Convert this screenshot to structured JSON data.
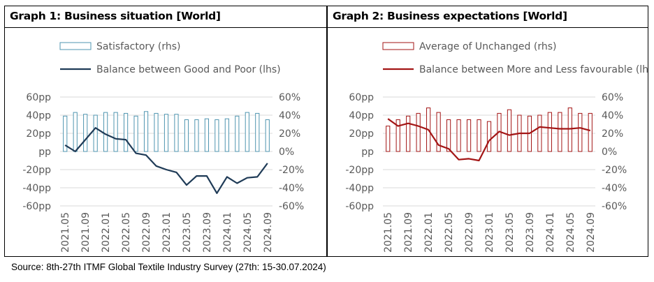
{
  "source": "Source: 8th-27th ITMF Global Textile Industry Survey (27th: 15-30.07.2024)",
  "colors": {
    "panel1": "#1f3b57",
    "panel1_bar": "#4f95b0",
    "panel2": "#a31515"
  },
  "chart_data": [
    {
      "type": "bar+line",
      "title": "Graph 1: Business situation [World]",
      "x": [
        "2021.05",
        "2021.07",
        "2021.09",
        "2021.11",
        "2022.01",
        "2022.03",
        "2022.05",
        "2022.07",
        "2022.09",
        "2022.11",
        "2023.01",
        "2023.03",
        "2023.05",
        "2023.07",
        "2023.09",
        "2023.11",
        "2024.01",
        "2024.03",
        "2024.05",
        "2024.07",
        "2024.09"
      ],
      "x_tick_labels": [
        "2021.05",
        "2021.09",
        "2022.01",
        "2022.05",
        "2022.09",
        "2023.01",
        "2023.05",
        "2023.09",
        "2024.01",
        "2024.05",
        "2024.09"
      ],
      "left_axis": {
        "ticks": [
          "60pp",
          "40pp",
          "20pp",
          "pp",
          "-20pp",
          "-40pp",
          "-60pp"
        ],
        "ylim": [
          -60,
          60
        ]
      },
      "right_axis": {
        "ticks": [
          "60%",
          "40%",
          "20%",
          "0%",
          "-20%",
          "-40%",
          "-60%"
        ],
        "ylim": [
          -60,
          60
        ]
      },
      "series": [
        {
          "name": "Satisfactory (rhs)",
          "type": "bar",
          "axis": "right",
          "values": [
            39,
            43,
            41,
            40,
            43,
            43,
            42,
            39,
            44,
            42,
            41,
            41,
            35,
            35,
            36,
            35,
            36,
            39,
            43,
            42,
            35
          ]
        },
        {
          "name": "Balance between Good and Poor (lhs)",
          "type": "line",
          "axis": "left",
          "values": [
            7,
            0,
            13,
            26,
            19,
            14,
            13,
            -2,
            -4,
            -16,
            -20,
            -23,
            -37,
            -27,
            -27,
            -46,
            -28,
            -35,
            -29,
            -28,
            -13
          ]
        }
      ]
    },
    {
      "type": "bar+line",
      "title": "Graph 2: Business expectations [World]",
      "x": [
        "2021.05",
        "2021.07",
        "2021.09",
        "2021.11",
        "2022.01",
        "2022.03",
        "2022.05",
        "2022.07",
        "2022.09",
        "2022.11",
        "2023.01",
        "2023.03",
        "2023.05",
        "2023.07",
        "2023.09",
        "2023.11",
        "2024.01",
        "2024.03",
        "2024.05",
        "2024.07",
        "2024.09"
      ],
      "x_tick_labels": [
        "2021.05",
        "2021.09",
        "2022.01",
        "2022.05",
        "2022.09",
        "2023.01",
        "2023.05",
        "2023.09",
        "2024.01",
        "2024.05",
        "2024.09"
      ],
      "left_axis": {
        "ticks": [
          "60pp",
          "40pp",
          "20pp",
          "pp",
          "-20pp",
          "-40pp",
          "-60pp"
        ],
        "ylim": [
          -60,
          60
        ]
      },
      "right_axis": {
        "ticks": [
          "60%",
          "40%",
          "20%",
          "0%",
          "-20%",
          "-40%",
          "-60%"
        ],
        "ylim": [
          -60,
          60
        ]
      },
      "series": [
        {
          "name": "Average of Unchanged (rhs)",
          "type": "bar",
          "axis": "right",
          "values": [
            28,
            35,
            39,
            42,
            48,
            43,
            35,
            35,
            35,
            35,
            33,
            42,
            46,
            40,
            39,
            40,
            43,
            43,
            48,
            42,
            42
          ]
        },
        {
          "name": "Balance between More and Less favourable (lhs)",
          "type": "line",
          "axis": "left",
          "values": [
            36,
            28,
            31,
            28,
            24,
            7,
            3,
            -9,
            -8,
            -10,
            12,
            22,
            18,
            20,
            20,
            27,
            26,
            25,
            25,
            26,
            23
          ]
        }
      ]
    }
  ]
}
